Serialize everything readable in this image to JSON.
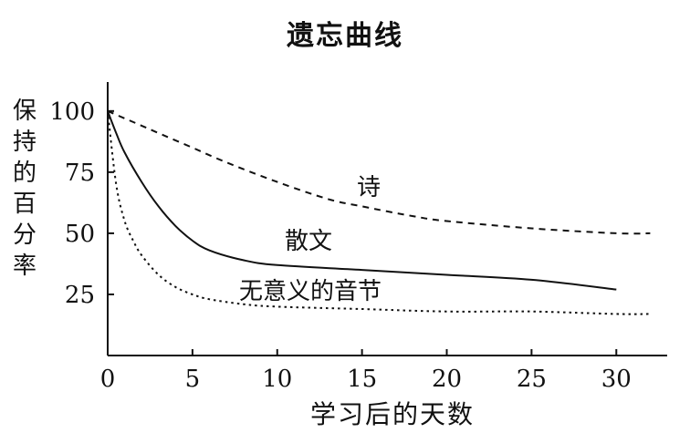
{
  "chart_data": {
    "type": "line",
    "title": "遗忘曲线",
    "xlabel": "学习后的天数",
    "ylabel": "保持的百分率",
    "xlim": [
      0,
      33
    ],
    "ylim": [
      0,
      110
    ],
    "x_ticks": [
      0,
      5,
      10,
      15,
      20,
      25,
      30
    ],
    "y_ticks": [
      25,
      50,
      75,
      100
    ],
    "grid": false,
    "series": [
      {
        "name": "诗",
        "style": "dashed",
        "x": [
          0,
          1,
          2,
          3,
          5,
          7,
          10,
          13,
          15,
          18,
          20,
          25,
          30,
          32
        ],
        "y": [
          100,
          97,
          94,
          91,
          85,
          79,
          71,
          64,
          61,
          57,
          55,
          52,
          50,
          50
        ]
      },
      {
        "name": "散文",
        "style": "solid",
        "x": [
          0,
          0.5,
          1,
          2,
          3,
          4,
          5,
          6,
          8,
          10,
          15,
          20,
          25,
          30
        ],
        "y": [
          100,
          91,
          83,
          71,
          61,
          53,
          47,
          43,
          39,
          37,
          35,
          33,
          31,
          27
        ]
      },
      {
        "name": "无意义的音节",
        "style": "dotted",
        "x": [
          0,
          0.5,
          1,
          1.5,
          2,
          3,
          4,
          5,
          6,
          8,
          10,
          15,
          20,
          25,
          30,
          32
        ],
        "y": [
          100,
          70,
          55,
          47,
          41,
          33,
          28,
          25,
          23,
          21,
          20,
          19,
          18,
          18,
          17,
          17
        ]
      }
    ]
  }
}
